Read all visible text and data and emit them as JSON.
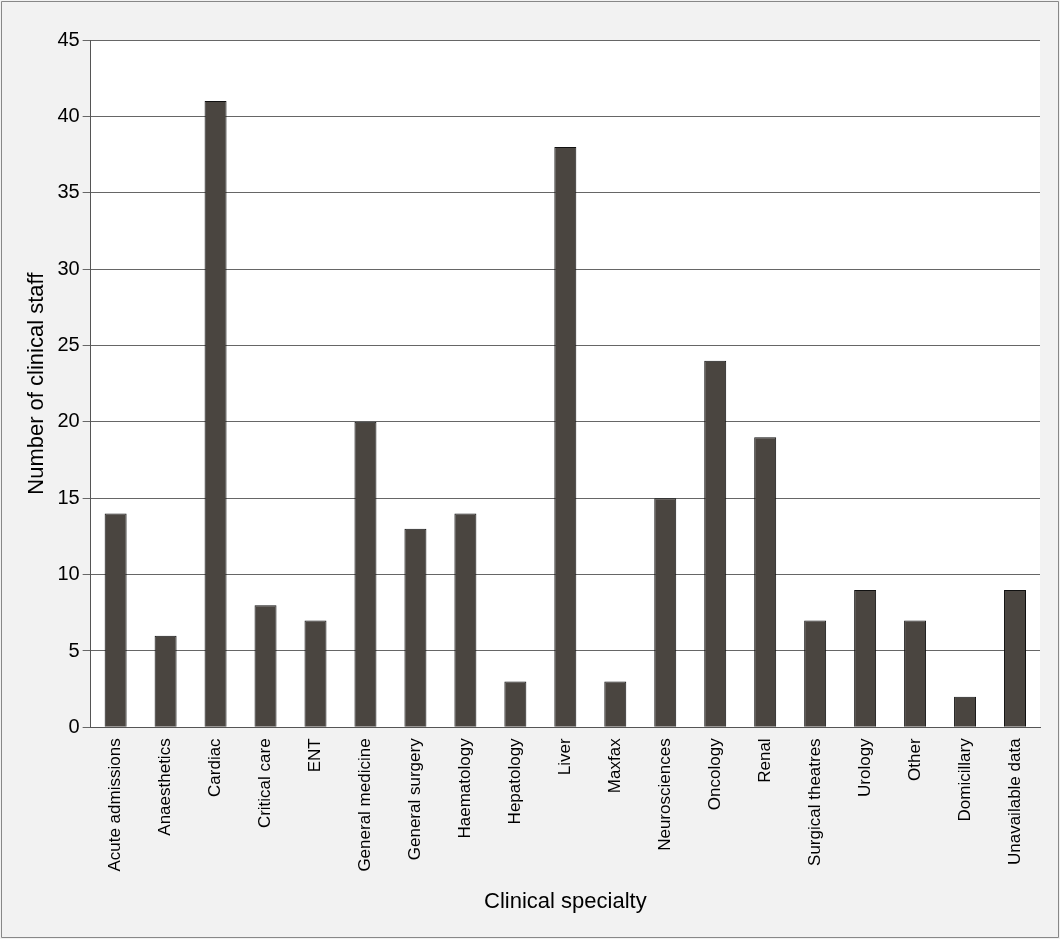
{
  "chart_data": {
    "type": "bar",
    "xlabel": "Clinical specialty",
    "ylabel": "Number of clinical staff",
    "categories": [
      "Acute admissions",
      "Anaesthetics",
      "Cardiac",
      "Critical care",
      "ENT",
      "General medicine",
      "General surgery",
      "Haematology",
      "Hepatology",
      "Liver",
      "Maxfax",
      "Neurosciences",
      "Oncology",
      "Renal",
      "Surgical theatres",
      "Urology",
      "Other",
      "Domicillary",
      "Unavailable data"
    ],
    "values": [
      14,
      6,
      41,
      8,
      7,
      20,
      13,
      14,
      3,
      38,
      3,
      15,
      24,
      19,
      7,
      9,
      7,
      2,
      9
    ],
    "color": "#4a4540",
    "ylim": [
      0,
      45
    ],
    "yticks": [
      0,
      5,
      10,
      15,
      20,
      25,
      30,
      35,
      40,
      45
    ],
    "grid": "y",
    "legend": false
  }
}
